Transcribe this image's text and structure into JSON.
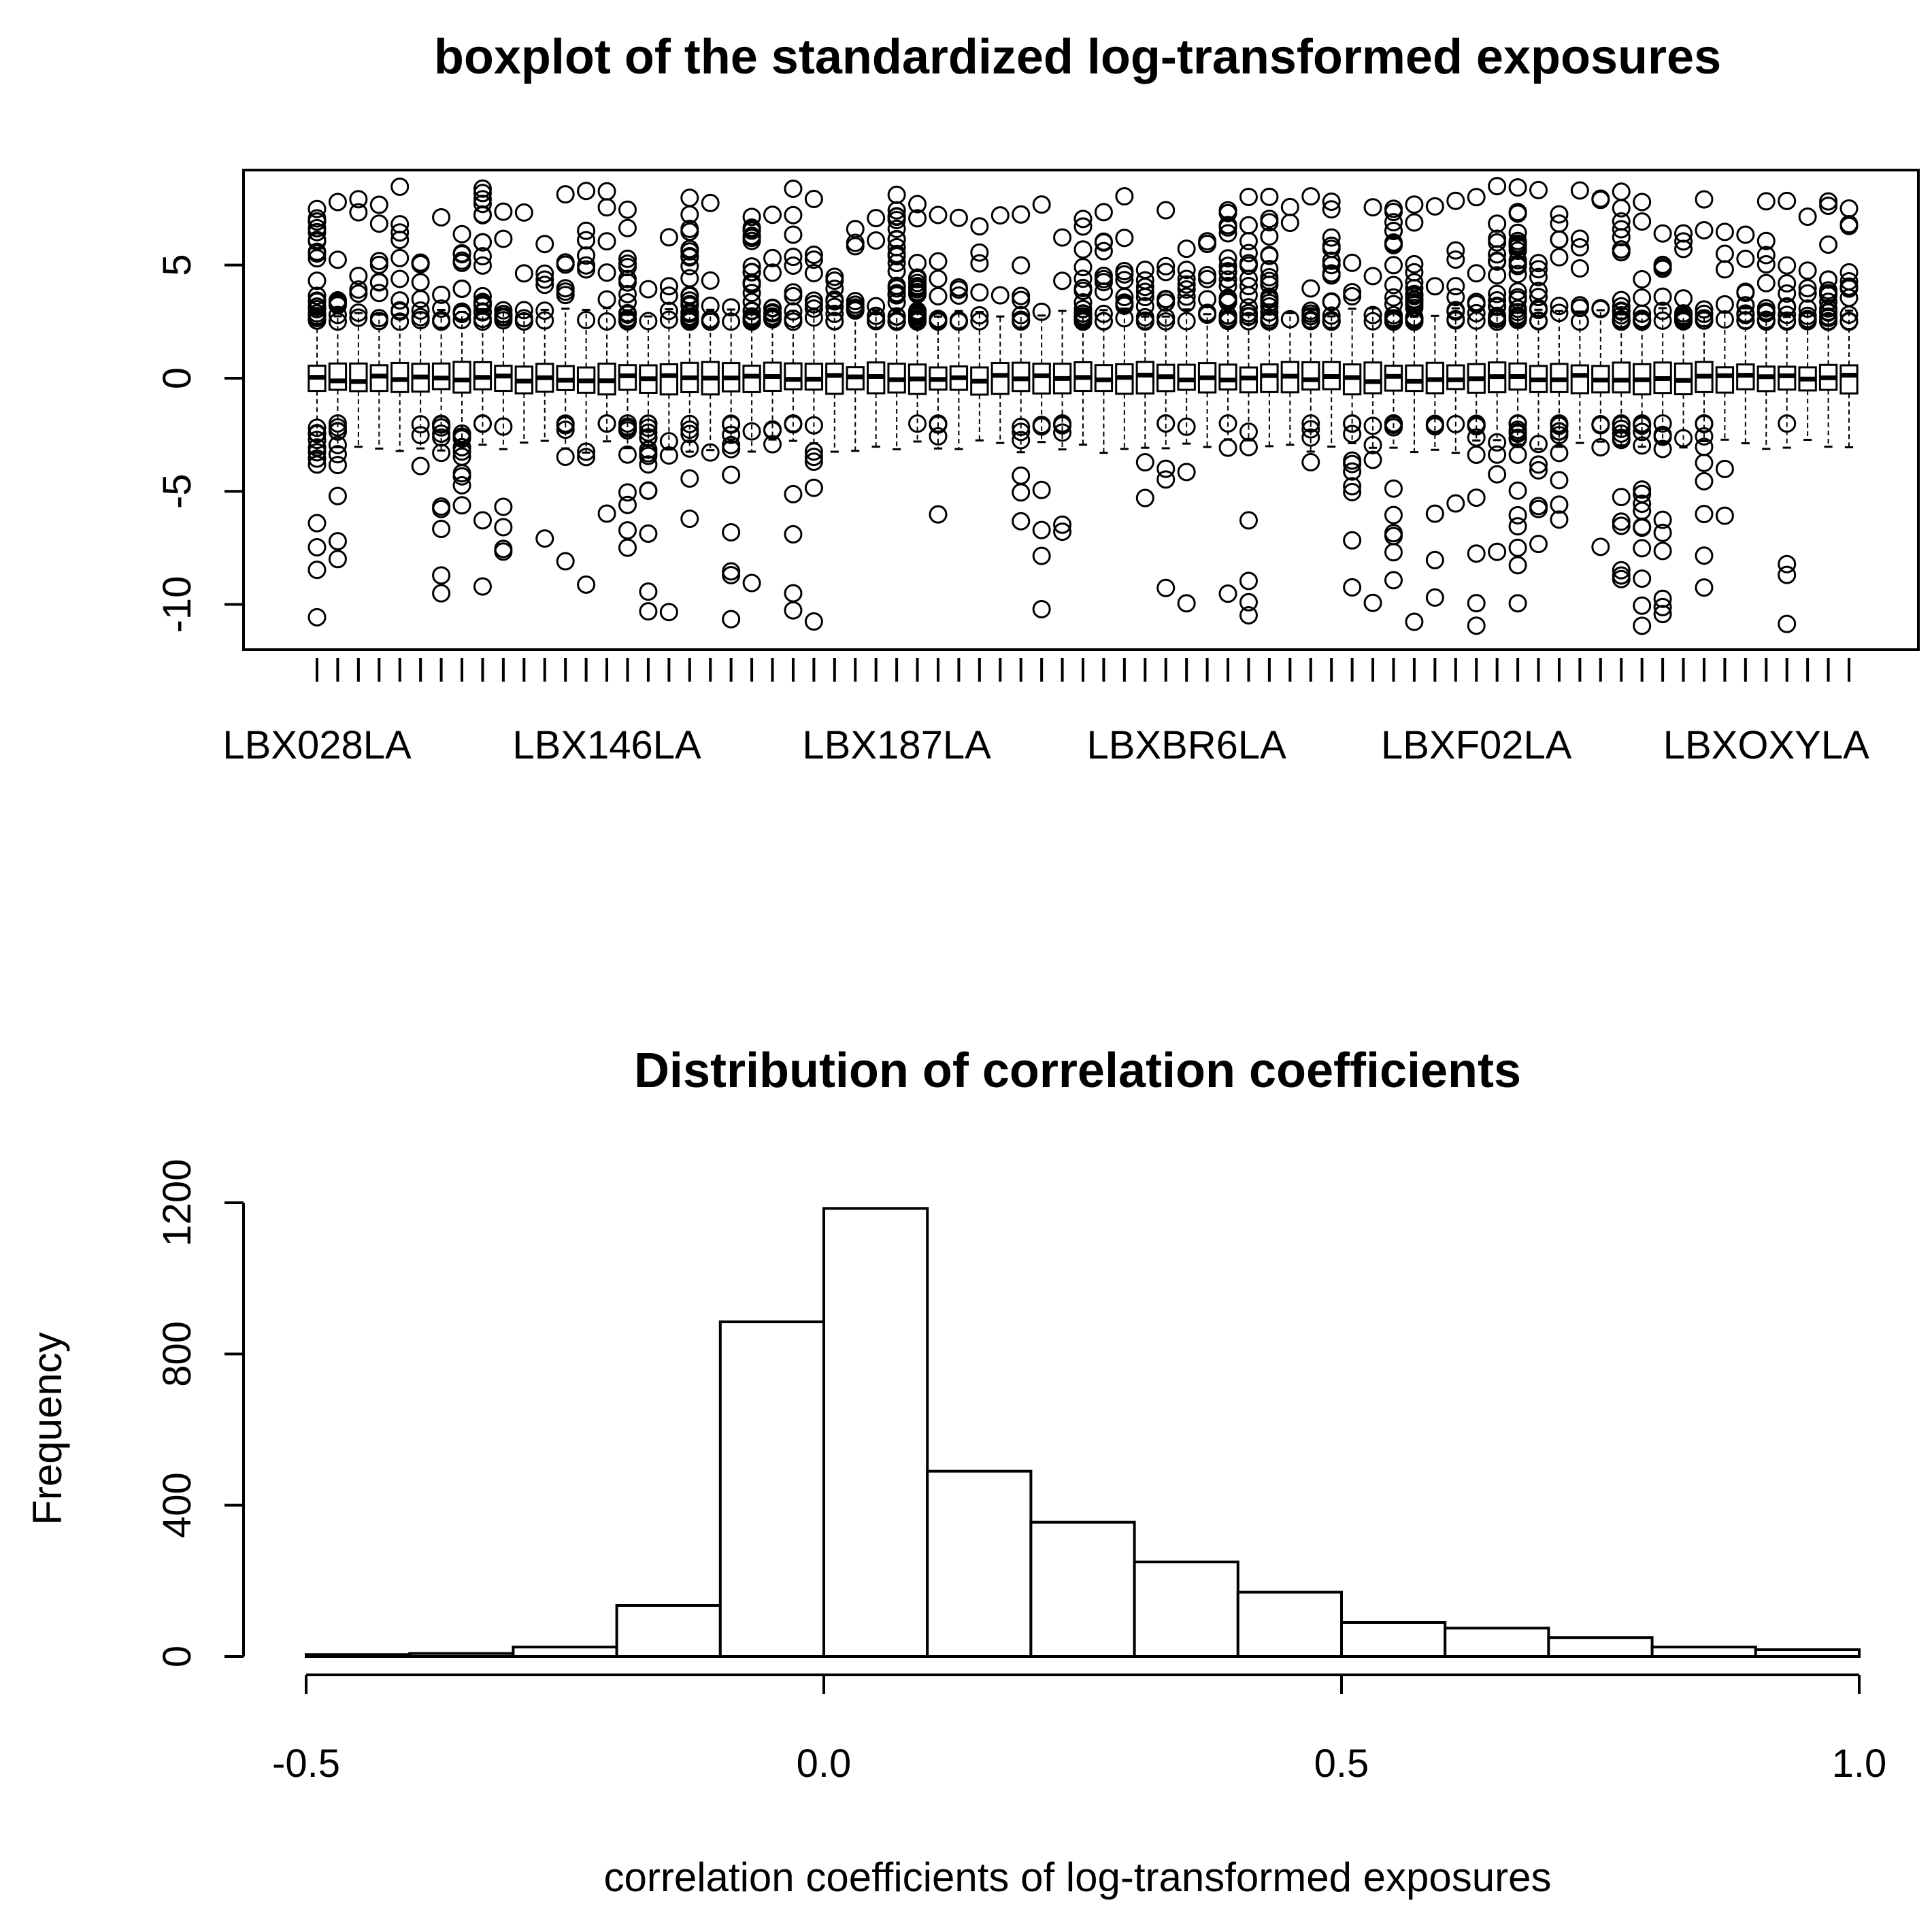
{
  "chart_data": [
    {
      "type": "box",
      "title": "boxplot of the standardized log-transformed exposures",
      "xlabel": "",
      "ylabel": "",
      "ylim": [
        -12,
        9.2
      ],
      "y_ticks": [
        5,
        0,
        -5,
        -10
      ],
      "y_tick_labels": [
        "5",
        "0",
        "-5",
        "-10"
      ],
      "n_boxes": 75,
      "visible_category_labels": [
        "LBX028LA",
        "LBX146LA",
        "LBX187LA",
        "LBXBR6LA",
        "LBXF02LA",
        "LBXOXYLA"
      ],
      "summary": {
        "median_approx": 0,
        "q1_approx": -0.6,
        "q3_approx": 0.6,
        "whisker_low_approx": -2.7,
        "whisker_high_approx": 2.7,
        "upper_outliers_range": [
          2.5,
          8.5
        ],
        "lower_outliers_range": [
          -11.2,
          -2.0
        ]
      }
    },
    {
      "type": "histogram",
      "title": "Distribution of correlation coefficients",
      "xlabel": "correlation coefficients of log-transformed exposures",
      "ylabel": "Frequency",
      "bin_edges": [
        -0.5,
        -0.4,
        -0.3,
        -0.2,
        -0.1,
        0.0,
        0.1,
        0.2,
        0.3,
        0.4,
        0.5,
        0.6,
        0.7,
        0.8,
        0.9,
        1.0
      ],
      "counts": [
        5,
        8,
        25,
        135,
        885,
        1185,
        490,
        355,
        250,
        170,
        90,
        75,
        50,
        25,
        18
      ],
      "xlim": [
        -0.5,
        1.0
      ],
      "ylim": [
        0,
        1200
      ],
      "x_ticks": [
        -0.5,
        0.0,
        0.5,
        1.0
      ],
      "x_tick_labels": [
        "-0.5",
        "0.0",
        "0.5",
        "1.0"
      ],
      "y_ticks": [
        0,
        400,
        800,
        1200
      ],
      "y_tick_labels": [
        "0",
        "400",
        "800",
        "1200"
      ]
    }
  ]
}
